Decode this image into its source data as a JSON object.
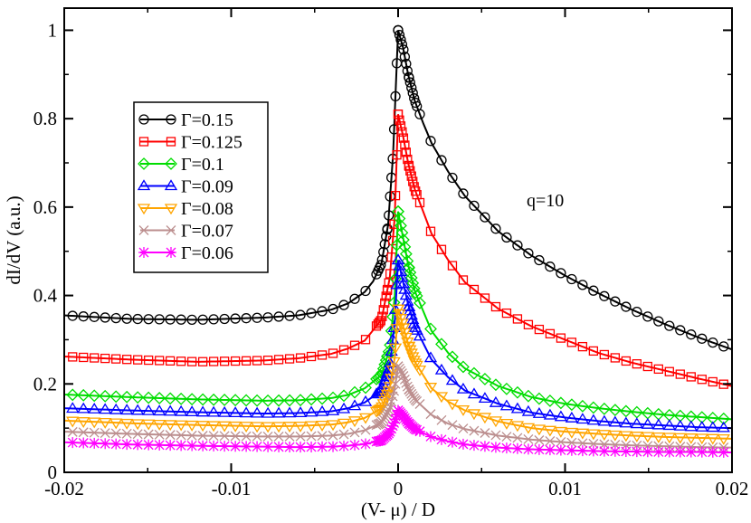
{
  "chart_data": {
    "type": "line",
    "title": "",
    "xlabel": "(V- μ) /  D",
    "ylabel": "dI/dV (a.u.)",
    "xlim": [
      -0.02,
      0.02
    ],
    "ylim": [
      0,
      1.05
    ],
    "x_ticks": [
      -0.02,
      -0.01,
      0,
      0.01,
      0.02
    ],
    "x_tick_labels": [
      "-0.02",
      "-0.01",
      "0",
      "0.01",
      "0.02"
    ],
    "y_ticks": [
      0,
      0.2,
      0.4,
      0.6,
      0.8,
      1
    ],
    "y_tick_labels": [
      "0",
      "0.2",
      "0.4",
      "0.6",
      "0.8",
      "1"
    ],
    "grid": false,
    "legend_position": "upper-left",
    "annotation": "q=10",
    "series": [
      {
        "name": "Γ=0.15",
        "color": "#000000",
        "marker": "circle",
        "points": [
          [
            -0.02,
            0.355
          ],
          [
            -0.016,
            0.347
          ],
          [
            -0.012,
            0.345
          ],
          [
            -0.008,
            0.35
          ],
          [
            -0.006,
            0.355
          ],
          [
            -0.004,
            0.368
          ],
          [
            -0.003,
            0.382
          ],
          [
            -0.002,
            0.408
          ],
          [
            -0.0015,
            0.432
          ],
          [
            -0.001,
            0.472
          ],
          [
            -0.0006,
            0.56
          ],
          [
            -0.0003,
            0.72
          ],
          [
            0,
            1.0
          ],
          [
            0.0003,
            0.96
          ],
          [
            0.0006,
            0.9
          ],
          [
            0.001,
            0.84
          ],
          [
            0.0015,
            0.79
          ],
          [
            0.002,
            0.745
          ],
          [
            0.003,
            0.68
          ],
          [
            0.004,
            0.625
          ],
          [
            0.006,
            0.545
          ],
          [
            0.008,
            0.49
          ],
          [
            0.01,
            0.445
          ],
          [
            0.012,
            0.405
          ],
          [
            0.014,
            0.368
          ],
          [
            0.016,
            0.335
          ],
          [
            0.018,
            0.305
          ],
          [
            0.02,
            0.278
          ]
        ]
      },
      {
        "name": "Γ=0.125",
        "color": "#ff0000",
        "marker": "square",
        "points": [
          [
            -0.02,
            0.262
          ],
          [
            -0.016,
            0.255
          ],
          [
            -0.012,
            0.25
          ],
          [
            -0.008,
            0.253
          ],
          [
            -0.006,
            0.258
          ],
          [
            -0.004,
            0.268
          ],
          [
            -0.003,
            0.28
          ],
          [
            -0.002,
            0.298
          ],
          [
            -0.001,
            0.345
          ],
          [
            -0.0005,
            0.44
          ],
          [
            -0.0002,
            0.58
          ],
          [
            0,
            0.81
          ],
          [
            0.0003,
            0.76
          ],
          [
            0.0006,
            0.7
          ],
          [
            0.001,
            0.64
          ],
          [
            0.002,
            0.54
          ],
          [
            0.003,
            0.48
          ],
          [
            0.004,
            0.43
          ],
          [
            0.006,
            0.37
          ],
          [
            0.008,
            0.33
          ],
          [
            0.01,
            0.3
          ],
          [
            0.012,
            0.27
          ],
          [
            0.014,
            0.248
          ],
          [
            0.016,
            0.23
          ],
          [
            0.018,
            0.212
          ],
          [
            0.02,
            0.195
          ]
        ]
      },
      {
        "name": "Γ=0.1",
        "color": "#00dd00",
        "marker": "diamond",
        "points": [
          [
            -0.02,
            0.176
          ],
          [
            -0.016,
            0.17
          ],
          [
            -0.012,
            0.165
          ],
          [
            -0.008,
            0.162
          ],
          [
            -0.006,
            0.163
          ],
          [
            -0.004,
            0.168
          ],
          [
            -0.003,
            0.175
          ],
          [
            -0.002,
            0.19
          ],
          [
            -0.001,
            0.22
          ],
          [
            -0.0005,
            0.28
          ],
          [
            -0.0002,
            0.4
          ],
          [
            0,
            0.59
          ],
          [
            0.0003,
            0.53
          ],
          [
            0.0006,
            0.47
          ],
          [
            0.001,
            0.41
          ],
          [
            0.002,
            0.32
          ],
          [
            0.003,
            0.27
          ],
          [
            0.004,
            0.235
          ],
          [
            0.006,
            0.195
          ],
          [
            0.008,
            0.17
          ],
          [
            0.01,
            0.155
          ],
          [
            0.012,
            0.145
          ],
          [
            0.014,
            0.137
          ],
          [
            0.016,
            0.13
          ],
          [
            0.018,
            0.125
          ],
          [
            0.02,
            0.12
          ]
        ]
      },
      {
        "name": "Γ=0.09",
        "color": "#0000ff",
        "marker": "triangle-up",
        "points": [
          [
            -0.02,
            0.145
          ],
          [
            -0.016,
            0.14
          ],
          [
            -0.012,
            0.136
          ],
          [
            -0.008,
            0.133
          ],
          [
            -0.006,
            0.134
          ],
          [
            -0.004,
            0.138
          ],
          [
            -0.003,
            0.145
          ],
          [
            -0.002,
            0.158
          ],
          [
            -0.001,
            0.185
          ],
          [
            -0.0005,
            0.24
          ],
          [
            -0.0002,
            0.34
          ],
          [
            0,
            0.48
          ],
          [
            0.0003,
            0.43
          ],
          [
            0.0006,
            0.38
          ],
          [
            0.001,
            0.33
          ],
          [
            0.002,
            0.255
          ],
          [
            0.003,
            0.215
          ],
          [
            0.004,
            0.185
          ],
          [
            0.006,
            0.155
          ],
          [
            0.008,
            0.135
          ],
          [
            0.01,
            0.124
          ],
          [
            0.012,
            0.116
          ],
          [
            0.014,
            0.11
          ],
          [
            0.016,
            0.106
          ],
          [
            0.018,
            0.102
          ],
          [
            0.02,
            0.1
          ]
        ]
      },
      {
        "name": "Γ=0.08",
        "color": "#ffa500",
        "marker": "triangle-down",
        "points": [
          [
            -0.02,
            0.117
          ],
          [
            -0.016,
            0.111
          ],
          [
            -0.012,
            0.107
          ],
          [
            -0.008,
            0.104
          ],
          [
            -0.006,
            0.105
          ],
          [
            -0.004,
            0.108
          ],
          [
            -0.003,
            0.113
          ],
          [
            -0.002,
            0.123
          ],
          [
            -0.001,
            0.145
          ],
          [
            -0.0005,
            0.19
          ],
          [
            -0.0002,
            0.26
          ],
          [
            0,
            0.37
          ],
          [
            0.0003,
            0.33
          ],
          [
            0.0006,
            0.29
          ],
          [
            0.001,
            0.25
          ],
          [
            0.002,
            0.19
          ],
          [
            0.003,
            0.16
          ],
          [
            0.004,
            0.14
          ],
          [
            0.006,
            0.115
          ],
          [
            0.008,
            0.1
          ],
          [
            0.01,
            0.092
          ],
          [
            0.012,
            0.087
          ],
          [
            0.014,
            0.083
          ],
          [
            0.016,
            0.08
          ],
          [
            0.018,
            0.078
          ],
          [
            0.02,
            0.076
          ]
        ]
      },
      {
        "name": "Γ=0.07",
        "color": "#bc8f8f",
        "marker": "x",
        "points": [
          [
            -0.02,
            0.092
          ],
          [
            -0.016,
            0.087
          ],
          [
            -0.012,
            0.083
          ],
          [
            -0.008,
            0.081
          ],
          [
            -0.006,
            0.081
          ],
          [
            -0.004,
            0.083
          ],
          [
            -0.003,
            0.087
          ],
          [
            -0.002,
            0.095
          ],
          [
            -0.001,
            0.112
          ],
          [
            -0.0005,
            0.145
          ],
          [
            -0.0002,
            0.19
          ],
          [
            0,
            0.24
          ],
          [
            0.0003,
            0.22
          ],
          [
            0.0006,
            0.19
          ],
          [
            0.001,
            0.165
          ],
          [
            0.002,
            0.13
          ],
          [
            0.003,
            0.11
          ],
          [
            0.004,
            0.098
          ],
          [
            0.006,
            0.083
          ],
          [
            0.008,
            0.074
          ],
          [
            0.01,
            0.068
          ],
          [
            0.012,
            0.064
          ],
          [
            0.014,
            0.061
          ],
          [
            0.016,
            0.059
          ],
          [
            0.018,
            0.057
          ],
          [
            0.02,
            0.056
          ]
        ]
      },
      {
        "name": "Γ=0.06",
        "color": "#ff00ff",
        "marker": "star",
        "points": [
          [
            -0.02,
            0.068
          ],
          [
            -0.016,
            0.063
          ],
          [
            -0.012,
            0.06
          ],
          [
            -0.008,
            0.058
          ],
          [
            -0.006,
            0.057
          ],
          [
            -0.004,
            0.058
          ],
          [
            -0.003,
            0.06
          ],
          [
            -0.002,
            0.064
          ],
          [
            -0.001,
            0.072
          ],
          [
            -0.0005,
            0.09
          ],
          [
            -0.0002,
            0.115
          ],
          [
            0,
            0.14
          ],
          [
            0.0003,
            0.128
          ],
          [
            0.0006,
            0.112
          ],
          [
            0.001,
            0.098
          ],
          [
            0.002,
            0.08
          ],
          [
            0.003,
            0.07
          ],
          [
            0.004,
            0.063
          ],
          [
            0.006,
            0.056
          ],
          [
            0.008,
            0.052
          ],
          [
            0.01,
            0.05
          ],
          [
            0.012,
            0.048
          ],
          [
            0.014,
            0.047
          ],
          [
            0.016,
            0.046
          ],
          [
            0.018,
            0.046
          ],
          [
            0.02,
            0.045
          ]
        ]
      }
    ]
  }
}
